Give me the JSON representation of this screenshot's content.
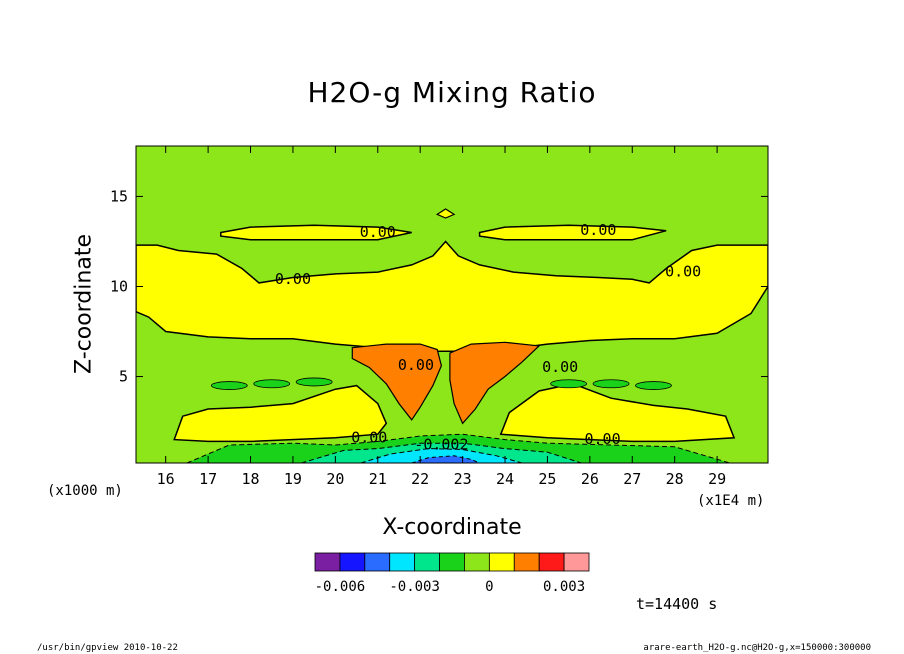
{
  "chart_data": {
    "type": "heatmap",
    "title": "H2O-g Mixing Ratio",
    "xlabel": "X-coordinate",
    "ylabel": "Z-coordinate",
    "x_unit_label": "(x1E4 m)",
    "y_unit_label": "(x1000 m)",
    "xlim": [
      15.3,
      30.2
    ],
    "ylim": [
      0.2,
      17.8
    ],
    "x_ticks": [
      16,
      17,
      18,
      19,
      20,
      21,
      22,
      23,
      24,
      25,
      26,
      27,
      28,
      29
    ],
    "y_ticks": [
      5,
      10,
      15
    ],
    "grid": false,
    "background_level": "0 to 0.0005",
    "contour_labels": [
      {
        "text": "0.00",
        "x": 21.0,
        "z": 13.0
      },
      {
        "text": "0.00",
        "x": 26.2,
        "z": 13.1
      },
      {
        "text": "0.00",
        "x": 19.0,
        "z": 10.4
      },
      {
        "text": "0.00",
        "x": 28.2,
        "z": 10.8
      },
      {
        "text": "0.00",
        "x": 20.8,
        "z": 1.6
      },
      {
        "text": "0.00",
        "x": 21.9,
        "z": 5.6
      },
      {
        "text": "0.00",
        "x": 26.3,
        "z": 1.5
      },
      {
        "text": "0.00",
        "x": 25.3,
        "z": 5.5
      },
      {
        "text": "-0.002",
        "x": 22.5,
        "z": 1.2
      }
    ],
    "colorbar": {
      "colors": [
        "#7a1fa2",
        "#1515ff",
        "#2a6cff",
        "#00e6ff",
        "#00e68c",
        "#19d219",
        "#8ce619",
        "#ffff00",
        "#ff7f00",
        "#ff1a1a",
        "#ff9999"
      ],
      "tick_labels": [
        "-0.006",
        "-0.003",
        "0",
        "0.003"
      ]
    },
    "time_label": "t=14400 s"
  },
  "footer": {
    "left": "/usr/bin/gpview   2010-10-22",
    "right": "arare-earth_H2O-g.nc@H2O-g,x=150000:300000"
  }
}
